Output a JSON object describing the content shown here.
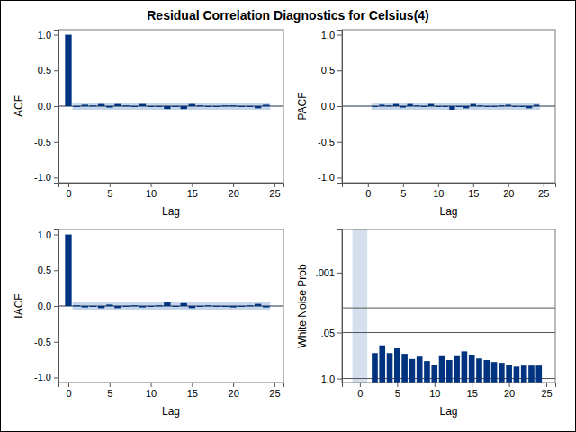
{
  "title": "Residual Correlation Diagnostics for Celsius(4)",
  "chart_data": [
    {
      "type": "bar",
      "y_label": "ACF",
      "x_label": "Lag",
      "color": "#00337f",
      "x": [
        0,
        1,
        2,
        3,
        4,
        5,
        6,
        7,
        8,
        9,
        10,
        11,
        12,
        13,
        14,
        15,
        16,
        17,
        18,
        19,
        20,
        21,
        22,
        23,
        24
      ],
      "values": [
        1.0,
        -0.01,
        0.02,
        0.01,
        0.03,
        -0.02,
        0.03,
        0.01,
        -0.01,
        0.03,
        0.0,
        -0.01,
        -0.04,
        0.0,
        -0.04,
        0.03,
        0.01,
        -0.01,
        0.0,
        0.01,
        0.01,
        -0.01,
        0.0,
        -0.03,
        0.02
      ],
      "band": {
        "x": [
          0.5,
          24.5
        ],
        "lower": -0.05,
        "upper": 0.05
      },
      "reference_lines": [
        0
      ],
      "xlim": [
        -1.2,
        26.1
      ],
      "ylim": [
        -1.07,
        1.07
      ],
      "xticks": [
        0,
        5,
        10,
        15,
        20,
        25
      ],
      "yticks": [
        {
          "value": -1,
          "label": "-1.0"
        },
        {
          "value": -0.5,
          "label": "-0.5"
        },
        {
          "value": 0,
          "label": "0.0"
        },
        {
          "value": 0.5,
          "label": "0.5"
        },
        {
          "value": 1,
          "label": "1.0"
        }
      ]
    },
    {
      "type": "bar",
      "y_label": "PACF",
      "x_label": "Lag",
      "color": "#00337f",
      "x": [
        1,
        2,
        3,
        4,
        5,
        6,
        7,
        8,
        9,
        10,
        11,
        12,
        13,
        14,
        15,
        16,
        17,
        18,
        19,
        20,
        21,
        22,
        23,
        24
      ],
      "values": [
        -0.01,
        0.02,
        0.01,
        0.03,
        -0.02,
        0.03,
        0.01,
        -0.01,
        0.03,
        0.0,
        -0.01,
        -0.05,
        -0.01,
        -0.03,
        0.03,
        0.01,
        -0.01,
        0.0,
        0.01,
        0.02,
        0.0,
        -0.01,
        -0.03,
        0.02
      ],
      "band": {
        "x": [
          0.5,
          24.5
        ],
        "lower": -0.05,
        "upper": 0.05
      },
      "reference_lines": [
        0
      ],
      "xlim": [
        -3.7,
        26.7
      ],
      "ylim": [
        -1.07,
        1.07
      ],
      "xticks": [
        0,
        5,
        10,
        15,
        20,
        25
      ],
      "yticks": [
        {
          "value": -1,
          "label": "-1.0"
        },
        {
          "value": -0.5,
          "label": "-0.5"
        },
        {
          "value": 0,
          "label": "0.0"
        },
        {
          "value": 0.5,
          "label": "0.5"
        },
        {
          "value": 1,
          "label": "1.0"
        }
      ]
    },
    {
      "type": "bar",
      "y_label": "IACF",
      "x_label": "Lag",
      "color": "#00337f",
      "x": [
        0,
        1,
        2,
        3,
        4,
        5,
        6,
        7,
        8,
        9,
        10,
        11,
        12,
        13,
        14,
        15,
        16,
        17,
        18,
        19,
        20,
        21,
        22,
        23,
        24
      ],
      "values": [
        1.0,
        0.01,
        -0.02,
        -0.01,
        -0.03,
        0.02,
        -0.03,
        -0.01,
        0.01,
        -0.02,
        0.0,
        0.01,
        0.05,
        0.0,
        0.04,
        -0.03,
        -0.01,
        0.01,
        0.0,
        -0.01,
        -0.02,
        0.0,
        0.01,
        0.03,
        -0.02
      ],
      "band": {
        "x": [
          0.5,
          24.5
        ],
        "lower": -0.05,
        "upper": 0.05
      },
      "reference_lines": [
        0
      ],
      "xlim": [
        -1.2,
        26.1
      ],
      "ylim": [
        -1.07,
        1.07
      ],
      "xticks": [
        0,
        5,
        10,
        15,
        20,
        25
      ],
      "yticks": [
        {
          "value": -1,
          "label": "-1.0"
        },
        {
          "value": -0.5,
          "label": "-0.5"
        },
        {
          "value": 0,
          "label": "0.0"
        },
        {
          "value": 0.5,
          "label": "0.5"
        },
        {
          "value": 1,
          "label": "1.0"
        }
      ]
    },
    {
      "type": "bar",
      "y_label": "White Noise Prob",
      "x_label": "Lag",
      "color": "#00337f",
      "log": "y",
      "x": [
        2,
        3,
        4,
        5,
        6,
        7,
        8,
        9,
        10,
        11,
        12,
        13,
        14,
        15,
        16,
        17,
        18,
        19,
        20,
        21,
        22,
        23,
        24
      ],
      "values": [
        0.19,
        0.115,
        0.19,
        0.14,
        0.2,
        0.28,
        0.24,
        0.32,
        0.41,
        0.22,
        0.3,
        0.22,
        0.17,
        0.21,
        0.27,
        0.3,
        0.34,
        0.36,
        0.41,
        0.46,
        0.43,
        0.43,
        0.43
      ],
      "shaded": [
        -1,
        1
      ],
      "reference_lines": [
        0.01,
        0.05,
        1
      ],
      "xlim": [
        -2.4,
        26.2
      ],
      "ylim": [
        1.3,
        6e-05
      ],
      "xticks": [
        0,
        5,
        10,
        15,
        20,
        25
      ],
      "yticks": [
        {
          "value": 0.001,
          "label": ".001"
        },
        {
          "value": 0.05,
          "label": ".05"
        },
        {
          "value": 1,
          "label": "1.0"
        }
      ]
    }
  ]
}
